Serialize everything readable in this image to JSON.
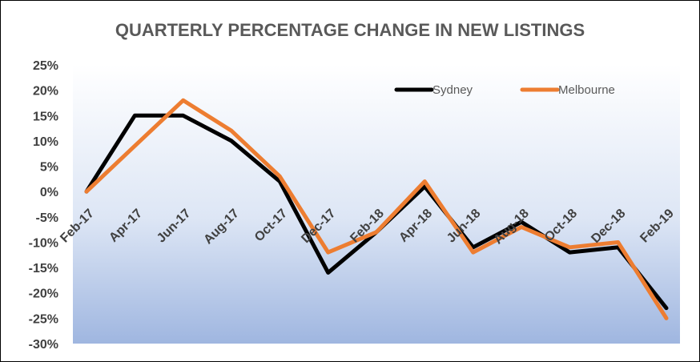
{
  "chart_data": {
    "type": "line",
    "title": "QUARTERLY PERCENTAGE CHANGE IN  NEW LISTINGS",
    "categories": [
      "Feb-17",
      "Apr-17",
      "Jun-17",
      "Aug-17",
      "Oct-17",
      "Dec-17",
      "Feb-18",
      "Apr-18",
      "Jun-18",
      "Aug-18",
      "Oct-18",
      "Dec-18",
      "Feb-19"
    ],
    "series": [
      {
        "name": "Sydney",
        "color": "#000000",
        "values": [
          0,
          15,
          15,
          10,
          2,
          -16,
          -8,
          1,
          -11,
          -6,
          -12,
          -11,
          -23
        ]
      },
      {
        "name": "Melbourne",
        "color": "#ED7D31",
        "values": [
          0,
          9,
          18,
          12,
          3,
          -12,
          -8,
          2,
          -12,
          -7,
          -11,
          -10,
          -25
        ]
      }
    ],
    "ylim": [
      -30,
      25
    ],
    "ytick_step": 5,
    "ytick_labels": [
      "25%",
      "20%",
      "15%",
      "10%",
      "5%",
      "0%",
      "-5%",
      "-10%",
      "-15%",
      "-20%",
      "-25%",
      "-30%"
    ],
    "grid": false,
    "legend_position": "top-right",
    "plot_background": "gradient white-to-blue"
  }
}
